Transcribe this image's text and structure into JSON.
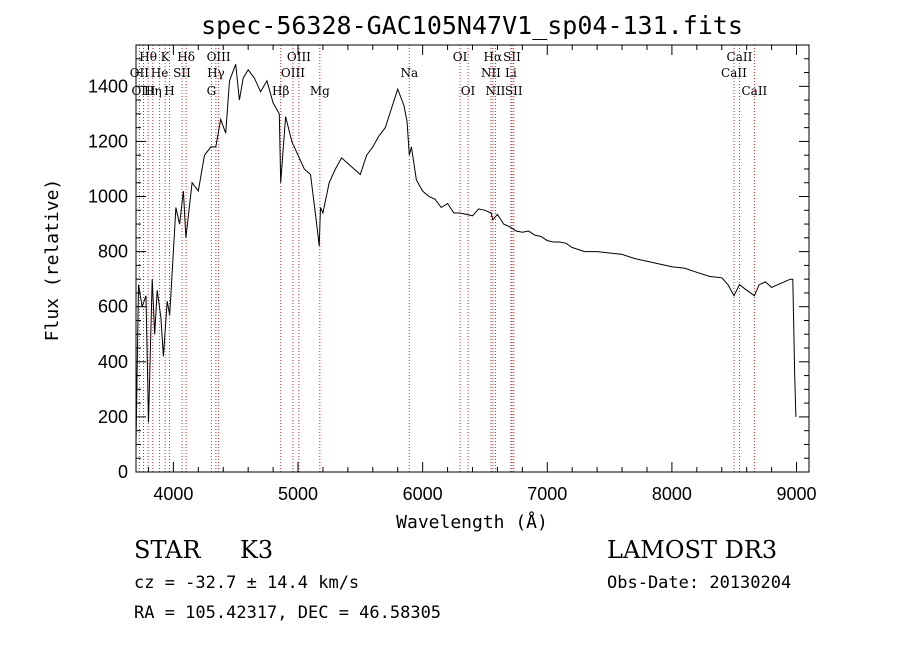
{
  "chart_data": {
    "type": "line",
    "title": "spec-56328-GAC105N47V1_sp04-131.fits",
    "xlabel": "Wavelength (Å)",
    "ylabel": "Flux (relative)",
    "xlim": [
      3700,
      9100
    ],
    "ylim": [
      0,
      1550
    ],
    "x_ticks": [
      4000,
      5000,
      6000,
      7000,
      8000,
      9000
    ],
    "y_ticks": [
      0,
      200,
      400,
      600,
      800,
      1000,
      1200,
      1400
    ],
    "series": [
      {
        "name": "spectrum",
        "x": [
          3700,
          3720,
          3750,
          3780,
          3800,
          3830,
          3850,
          3870,
          3900,
          3920,
          3950,
          3970,
          3990,
          4020,
          4050,
          4080,
          4100,
          4150,
          4200,
          4250,
          4300,
          4340,
          4380,
          4420,
          4450,
          4500,
          4530,
          4560,
          4600,
          4650,
          4700,
          4750,
          4800,
          4850,
          4861,
          4900,
          4950,
          5000,
          5050,
          5100,
          5150,
          5170,
          5180,
          5200,
          5250,
          5300,
          5350,
          5400,
          5450,
          5500,
          5550,
          5600,
          5650,
          5700,
          5750,
          5800,
          5850,
          5875,
          5893,
          5910,
          5950,
          6000,
          6050,
          6100,
          6150,
          6200,
          6250,
          6300,
          6350,
          6400,
          6450,
          6500,
          6550,
          6563,
          6600,
          6650,
          6700,
          6750,
          6800,
          6850,
          6900,
          6950,
          7000,
          7050,
          7100,
          7150,
          7200,
          7300,
          7400,
          7500,
          7600,
          7700,
          7800,
          7900,
          8000,
          8100,
          8200,
          8300,
          8400,
          8450,
          8498,
          8542,
          8600,
          8662,
          8700,
          8750,
          8800,
          8850,
          8900,
          8950,
          8970,
          8985,
          8995
        ],
        "y": [
          100,
          680,
          600,
          640,
          180,
          700,
          500,
          660,
          560,
          420,
          620,
          570,
          720,
          960,
          900,
          1020,
          850,
          1050,
          1020,
          1150,
          1180,
          1180,
          1280,
          1230,
          1420,
          1480,
          1350,
          1430,
          1460,
          1430,
          1380,
          1420,
          1340,
          1300,
          1050,
          1290,
          1200,
          1150,
          1100,
          1080,
          900,
          820,
          960,
          940,
          1050,
          1100,
          1140,
          1120,
          1100,
          1080,
          1150,
          1180,
          1220,
          1250,
          1320,
          1390,
          1330,
          1270,
          1150,
          1180,
          1060,
          1020,
          1000,
          990,
          960,
          975,
          940,
          940,
          935,
          930,
          955,
          950,
          940,
          915,
          935,
          900,
          890,
          875,
          870,
          875,
          860,
          855,
          840,
          835,
          835,
          830,
          815,
          800,
          800,
          795,
          790,
          775,
          765,
          755,
          745,
          740,
          725,
          710,
          705,
          680,
          640,
          680,
          660,
          640,
          680,
          690,
          670,
          680,
          690,
          700,
          700,
          350,
          200
        ]
      }
    ]
  },
  "line_labels": [
    {
      "text": "Hθ",
      "wl": 3797,
      "row": 1
    },
    {
      "text": "OII",
      "wl": 3727,
      "row": 2
    },
    {
      "text": "OIII",
      "wl": 3760,
      "row": 3
    },
    {
      "text": "Hη",
      "wl": 3835,
      "row": 3
    },
    {
      "text": "He",
      "wl": 3889,
      "row": 2
    },
    {
      "text": "K",
      "wl": 3934,
      "row": 1
    },
    {
      "text": "H",
      "wl": 3969,
      "row": 3
    },
    {
      "text": "SII",
      "wl": 4069,
      "row": 2
    },
    {
      "text": "Hδ",
      "wl": 4102,
      "row": 1
    },
    {
      "text": "OIII",
      "wl": 4363,
      "row": 1
    },
    {
      "text": "Hγ",
      "wl": 4341,
      "row": 2
    },
    {
      "text": "G",
      "wl": 4305,
      "row": 3
    },
    {
      "text": "OIII",
      "wl": 5007,
      "row": 1
    },
    {
      "text": "OIII",
      "wl": 4959,
      "row": 2
    },
    {
      "text": "Hβ",
      "wl": 4861,
      "row": 3
    },
    {
      "text": "Mg",
      "wl": 5175,
      "row": 3
    },
    {
      "text": "Na",
      "wl": 5893,
      "row": 2
    },
    {
      "text": "OI",
      "wl": 6300,
      "row": 1
    },
    {
      "text": "OI",
      "wl": 6364,
      "row": 3
    },
    {
      "text": "Hα",
      "wl": 6563,
      "row": 1
    },
    {
      "text": "SII",
      "wl": 6717,
      "row": 1
    },
    {
      "text": "NII",
      "wl": 6548,
      "row": 2
    },
    {
      "text": "Li",
      "wl": 6708,
      "row": 2
    },
    {
      "text": "NII",
      "wl": 6584,
      "row": 3
    },
    {
      "text": "SII",
      "wl": 6731,
      "row": 3
    },
    {
      "text": "CaII",
      "wl": 8542,
      "row": 1
    },
    {
      "text": "CaII",
      "wl": 8498,
      "row": 2
    },
    {
      "text": "CaII",
      "wl": 8662,
      "row": 3
    }
  ],
  "info": {
    "obj_class": "STAR",
    "subclass": "K3",
    "cz": "cz = -32.7 ± 14.4 km/s",
    "radec": "RA = 105.42317, DEC =  46.58305",
    "survey": "LAMOST DR3",
    "obs_date": "Obs-Date: 20130204"
  }
}
